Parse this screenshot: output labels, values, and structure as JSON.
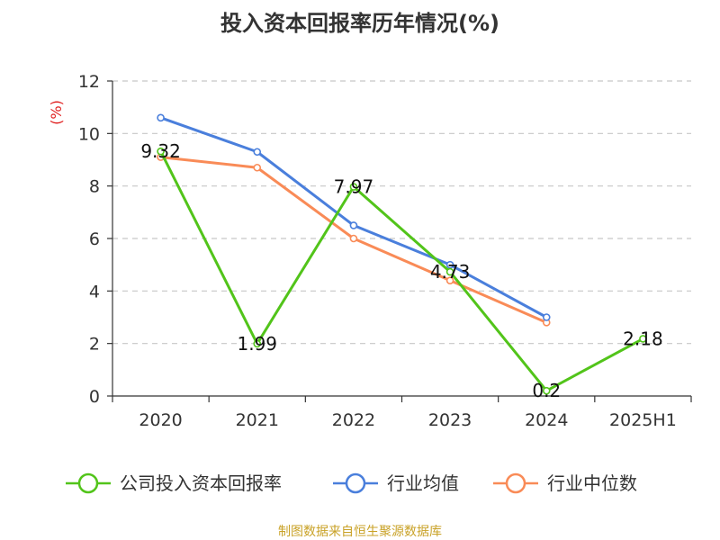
{
  "chart_data": {
    "type": "line",
    "title": "投入资本回报率历年情况(%)",
    "y_unit": "(%)",
    "categories": [
      "2020",
      "2021",
      "2022",
      "2023",
      "2024",
      "2025H1"
    ],
    "ylim": [
      0,
      12
    ],
    "yticks": [
      0,
      2,
      4,
      6,
      8,
      10,
      12
    ],
    "grid": true,
    "legend_position": "bottom",
    "series": [
      {
        "name": "公司投入资本回报率",
        "color": "#52c41a",
        "values": [
          9.32,
          1.99,
          7.97,
          4.73,
          0.2,
          2.18
        ],
        "labels": [
          "9.32",
          "1.99",
          "7.97",
          "4.73",
          "0.2",
          "2.18"
        ]
      },
      {
        "name": "行业均值",
        "color": "#4a7fdc",
        "values": [
          10.6,
          9.3,
          6.5,
          5.0,
          3.0,
          null
        ]
      },
      {
        "name": "行业中位数",
        "color": "#f98b57",
        "values": [
          9.1,
          8.7,
          6.0,
          4.4,
          2.8,
          null
        ]
      }
    ]
  },
  "source": {
    "text": "制图数据来自恒生聚源数据库",
    "color": "#c9a227"
  },
  "colors": {
    "unit_label": "#e02020",
    "grid": "#c8c8c8",
    "axis": "#333333"
  }
}
